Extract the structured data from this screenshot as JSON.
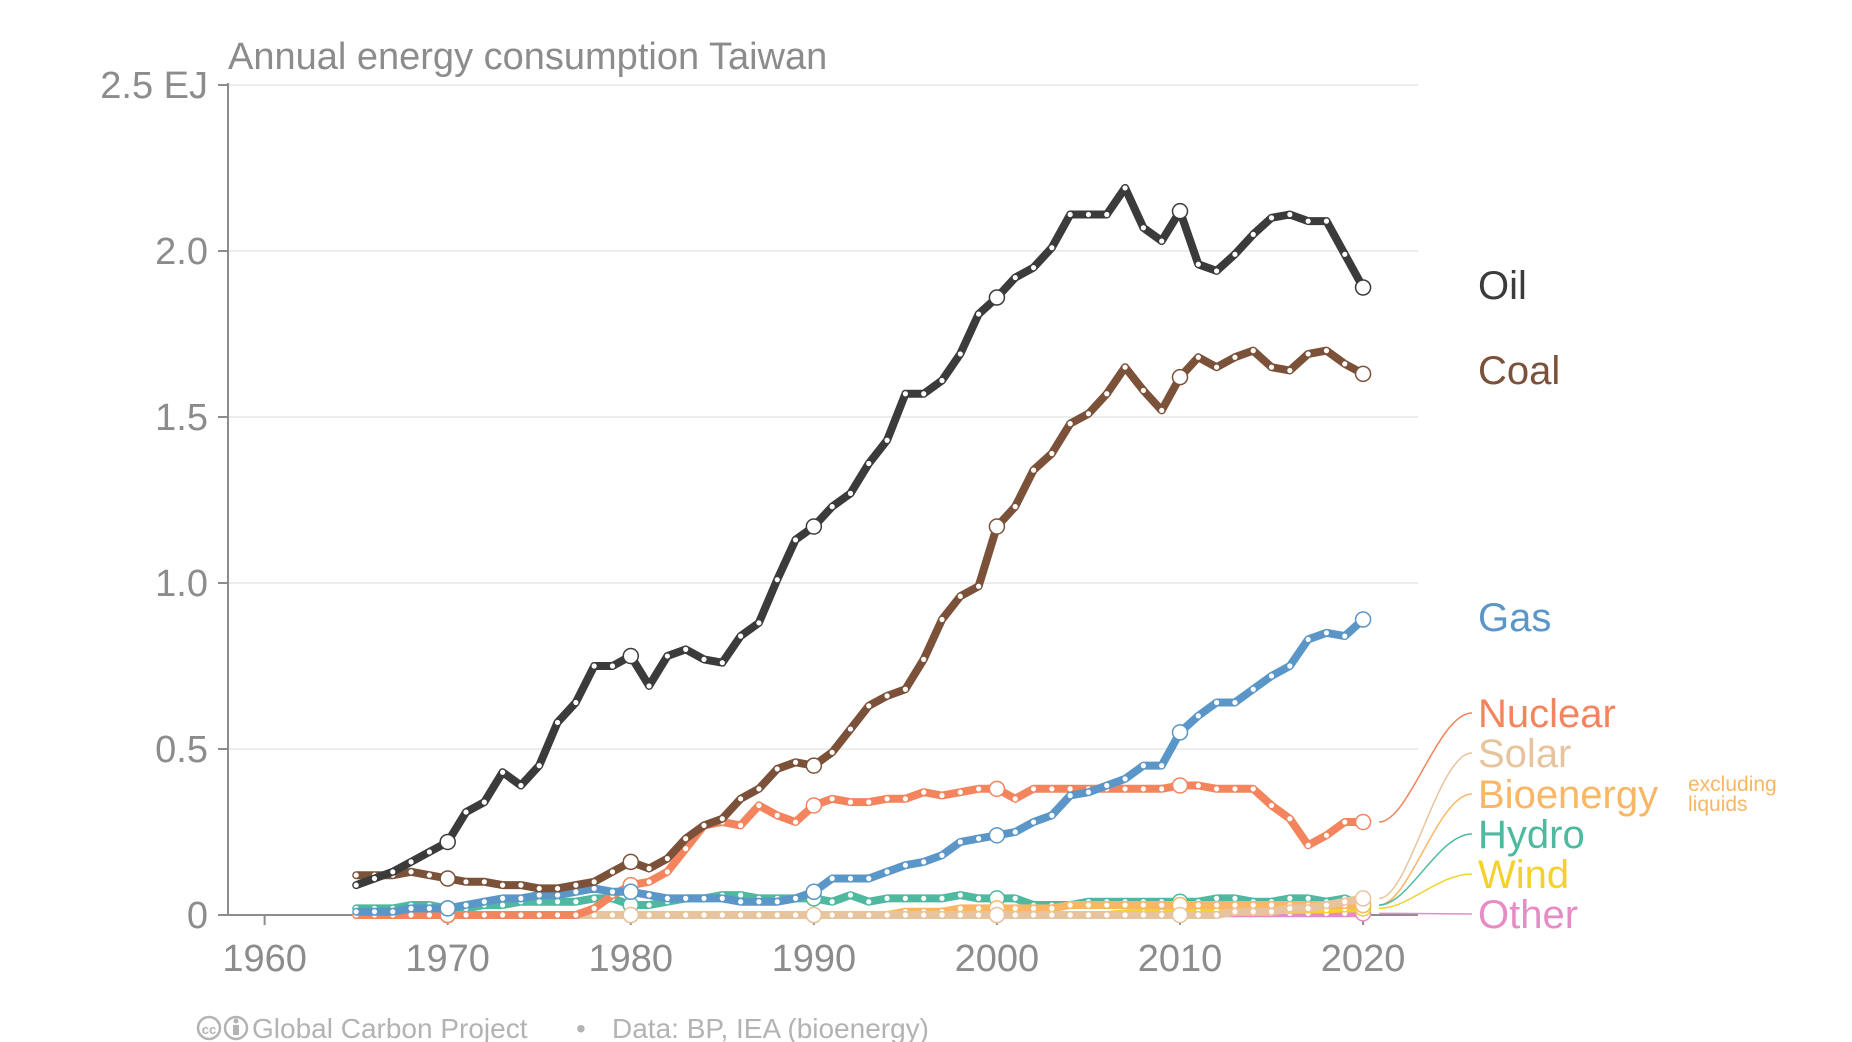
{
  "chart_data": {
    "type": "line",
    "title": "Annual energy consumption Taiwan",
    "xlabel": "",
    "ylabel": "",
    "x_ticks": [
      "1960",
      "1970",
      "1980",
      "1990",
      "2000",
      "2010",
      "2020"
    ],
    "y_ticks": [
      "0",
      "0.5",
      "1.0",
      "1.5",
      "2.0",
      "2.5 EJ"
    ],
    "xlim": [
      1958,
      2023
    ],
    "ylim": [
      0,
      2.5
    ],
    "grid": true,
    "legend": "labels at right end of lines",
    "x": [
      1965,
      1966,
      1967,
      1968,
      1969,
      1970,
      1971,
      1972,
      1973,
      1974,
      1975,
      1976,
      1977,
      1978,
      1979,
      1980,
      1981,
      1982,
      1983,
      1984,
      1985,
      1986,
      1987,
      1988,
      1989,
      1990,
      1991,
      1992,
      1993,
      1994,
      1995,
      1996,
      1997,
      1998,
      1999,
      2000,
      2001,
      2002,
      2003,
      2004,
      2005,
      2006,
      2007,
      2008,
      2009,
      2010,
      2011,
      2012,
      2013,
      2014,
      2015,
      2016,
      2017,
      2018,
      2019,
      2020
    ],
    "series": [
      {
        "name": "Oil",
        "color": "#3b3b3b",
        "values": [
          0.09,
          0.11,
          0.13,
          0.16,
          0.19,
          0.22,
          0.31,
          0.34,
          0.43,
          0.39,
          0.45,
          0.58,
          0.64,
          0.75,
          0.75,
          0.78,
          0.69,
          0.78,
          0.8,
          0.77,
          0.76,
          0.84,
          0.88,
          1.01,
          1.13,
          1.17,
          1.23,
          1.27,
          1.36,
          1.43,
          1.57,
          1.57,
          1.61,
          1.69,
          1.81,
          1.86,
          1.92,
          1.95,
          2.01,
          2.11,
          2.11,
          2.11,
          2.19,
          2.07,
          2.03,
          2.12,
          1.96,
          1.94,
          1.99,
          2.05,
          2.1,
          2.11,
          2.09,
          2.09,
          1.99,
          1.89
        ]
      },
      {
        "name": "Coal",
        "color": "#7b5239",
        "values": [
          0.12,
          0.12,
          0.12,
          0.13,
          0.12,
          0.11,
          0.1,
          0.1,
          0.09,
          0.09,
          0.08,
          0.08,
          0.09,
          0.1,
          0.13,
          0.16,
          0.14,
          0.17,
          0.23,
          0.27,
          0.29,
          0.35,
          0.38,
          0.44,
          0.46,
          0.45,
          0.49,
          0.56,
          0.63,
          0.66,
          0.68,
          0.77,
          0.89,
          0.96,
          0.99,
          1.17,
          1.23,
          1.34,
          1.39,
          1.48,
          1.51,
          1.57,
          1.65,
          1.58,
          1.52,
          1.62,
          1.68,
          1.65,
          1.68,
          1.7,
          1.65,
          1.64,
          1.69,
          1.7,
          1.66,
          1.63
        ]
      },
      {
        "name": "Gas",
        "color": "#5a96c8",
        "values": [
          0.01,
          0.01,
          0.01,
          0.02,
          0.02,
          0.02,
          0.03,
          0.04,
          0.05,
          0.05,
          0.06,
          0.06,
          0.07,
          0.08,
          0.07,
          0.07,
          0.06,
          0.05,
          0.05,
          0.05,
          0.05,
          0.04,
          0.04,
          0.04,
          0.05,
          0.07,
          0.11,
          0.11,
          0.11,
          0.13,
          0.15,
          0.16,
          0.18,
          0.22,
          0.23,
          0.24,
          0.25,
          0.28,
          0.3,
          0.36,
          0.37,
          0.39,
          0.41,
          0.45,
          0.45,
          0.55,
          0.6,
          0.64,
          0.64,
          0.68,
          0.72,
          0.75,
          0.83,
          0.85,
          0.84,
          0.89
        ]
      },
      {
        "name": "Nuclear",
        "color": "#f3845d",
        "values": [
          0,
          0,
          0,
          0,
          0,
          0,
          0,
          0,
          0,
          0,
          0,
          0,
          0,
          0.02,
          0.06,
          0.09,
          0.1,
          0.13,
          0.2,
          0.27,
          0.28,
          0.27,
          0.33,
          0.3,
          0.28,
          0.33,
          0.35,
          0.34,
          0.34,
          0.35,
          0.35,
          0.37,
          0.36,
          0.37,
          0.38,
          0.38,
          0.35,
          0.38,
          0.38,
          0.38,
          0.38,
          0.38,
          0.38,
          0.38,
          0.38,
          0.39,
          0.39,
          0.38,
          0.38,
          0.38,
          0.33,
          0.29,
          0.21,
          0.24,
          0.28,
          0.28
        ]
      },
      {
        "name": "Solar",
        "color": "#e8c49e",
        "values": [
          0,
          0,
          0,
          0,
          0,
          0,
          0,
          0,
          0,
          0,
          0,
          0,
          0,
          0,
          0,
          0,
          0,
          0,
          0,
          0,
          0,
          0,
          0,
          0,
          0,
          0,
          0,
          0,
          0,
          0,
          0,
          0,
          0,
          0,
          0,
          0,
          0,
          0,
          0,
          0,
          0,
          0,
          0,
          0,
          0,
          0,
          0,
          0,
          0.01,
          0.01,
          0.01,
          0.02,
          0.02,
          0.03,
          0.04,
          0.05
        ]
      },
      {
        "name": "Bioenergy",
        "color": "#f9b664",
        "values": [
          0,
          0,
          0,
          0,
          0,
          0,
          0,
          0,
          0,
          0,
          0,
          0,
          0,
          0,
          0,
          0,
          0,
          0,
          0,
          0,
          0,
          0,
          0,
          0,
          0,
          0,
          0,
          0,
          0,
          0,
          0.01,
          0.01,
          0.01,
          0.02,
          0.02,
          0.02,
          0.02,
          0.02,
          0.02,
          0.03,
          0.03,
          0.03,
          0.03,
          0.03,
          0.03,
          0.03,
          0.03,
          0.03,
          0.03,
          0.03,
          0.03,
          0.03,
          0.03,
          0.03,
          0.03,
          0.03
        ]
      },
      {
        "name": "Hydro",
        "color": "#4fb99f",
        "values": [
          0.02,
          0.02,
          0.02,
          0.03,
          0.03,
          0.02,
          0.02,
          0.03,
          0.03,
          0.04,
          0.04,
          0.04,
          0.04,
          0.05,
          0.05,
          0.03,
          0.03,
          0.04,
          0.05,
          0.05,
          0.06,
          0.06,
          0.05,
          0.05,
          0.05,
          0.05,
          0.04,
          0.06,
          0.04,
          0.05,
          0.05,
          0.05,
          0.05,
          0.06,
          0.05,
          0.05,
          0.05,
          0.03,
          0.03,
          0.03,
          0.04,
          0.04,
          0.04,
          0.04,
          0.04,
          0.04,
          0.04,
          0.05,
          0.05,
          0.04,
          0.04,
          0.05,
          0.05,
          0.04,
          0.05,
          0.03
        ]
      },
      {
        "name": "Wind",
        "color": "#f5d12d",
        "values": [
          0,
          0,
          0,
          0,
          0,
          0,
          0,
          0,
          0,
          0,
          0,
          0,
          0,
          0,
          0,
          0,
          0,
          0,
          0,
          0,
          0,
          0,
          0,
          0,
          0,
          0,
          0,
          0,
          0,
          0,
          0,
          0,
          0,
          0,
          0,
          0,
          0,
          0,
          0,
          0,
          0,
          0,
          0.005,
          0.007,
          0.008,
          0.01,
          0.01,
          0.012,
          0.014,
          0.015,
          0.015,
          0.015,
          0.017,
          0.017,
          0.02,
          0.02
        ]
      },
      {
        "name": "Other",
        "color": "#e88bc4",
        "values": [
          0,
          0,
          0,
          0,
          0,
          0,
          0,
          0,
          0,
          0,
          0,
          0,
          0,
          0,
          0,
          0,
          0,
          0,
          0,
          0,
          0,
          0,
          0,
          0,
          0,
          0,
          0,
          0,
          0,
          0,
          0,
          0,
          0,
          0,
          0,
          0,
          0,
          0,
          0,
          0,
          0,
          0,
          0,
          0,
          0,
          0.005,
          0.005,
          0.005,
          0.005,
          0.005,
          0.005,
          0.005,
          0.005,
          0.005,
          0.005,
          0.005
        ]
      }
    ],
    "annotation": {
      "text": "excluding liquids",
      "line1": "excluding",
      "line2": "liquids",
      "series": "Bioenergy"
    }
  },
  "footer": {
    "credit": "Global Carbon Project",
    "separator": "•",
    "source": "Data: BP, IEA (bioenergy)"
  },
  "icons": [
    "cc-license-icon",
    "attribution-icon"
  ]
}
